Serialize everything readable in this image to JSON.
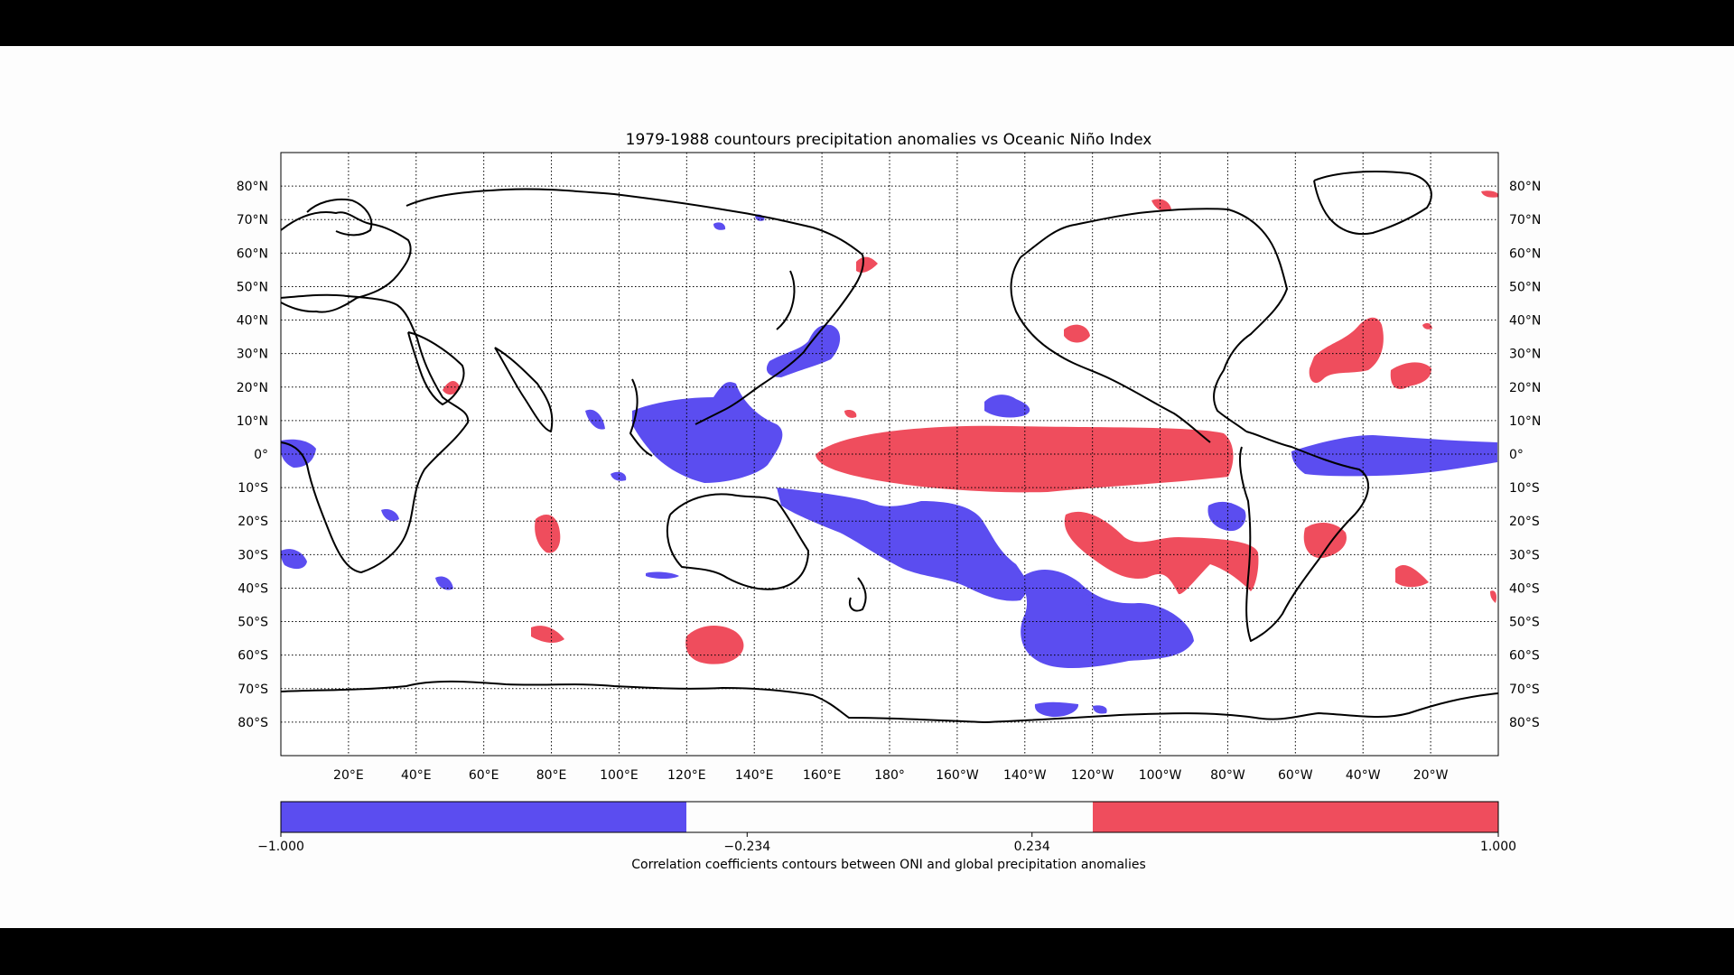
{
  "title": "1979-1988 countours precipitation anomalies vs Oceanic Niño Index",
  "colors": {
    "negative": "#5b4df0",
    "positive": "#ef4d5d",
    "land_outline": "#000000",
    "gridline": "#000000",
    "background": "#fdfdfd",
    "letterbox": "#000000"
  },
  "map": {
    "projection": "plate-carree",
    "central_longitude": 180,
    "lon_range": [
      0,
      360
    ],
    "lat_range": [
      -90,
      90
    ],
    "grid": true,
    "gridline_style": "dotted",
    "lon_tick_labels": [
      "20°E",
      "40°E",
      "60°E",
      "80°E",
      "100°E",
      "120°E",
      "140°E",
      "160°E",
      "180°",
      "160°W",
      "140°W",
      "120°W",
      "100°W",
      "80°W",
      "60°W",
      "40°W",
      "20°W"
    ],
    "lat_tick_labels_left": [
      "80°N",
      "70°N",
      "60°N",
      "50°N",
      "40°N",
      "30°N",
      "20°N",
      "10°N",
      "0°",
      "10°S",
      "20°S",
      "30°S",
      "40°S",
      "50°S",
      "60°S",
      "70°S",
      "80°S"
    ],
    "lat_tick_labels_right": [
      "80°N",
      "70°N",
      "60°N",
      "50°N",
      "40°N",
      "30°N",
      "20°N",
      "10°N",
      "0°",
      "10°S",
      "20°S",
      "30°S",
      "40°S",
      "50°S",
      "60°S",
      "70°S",
      "80°S"
    ]
  },
  "colorbar": {
    "tick_labels": [
      "−1.000",
      "−0.234",
      "0.234",
      "1.000"
    ],
    "tick_values": [
      -1.0,
      -0.234,
      0.234,
      1.0
    ],
    "levels": [
      -1.0,
      -0.234,
      0.234,
      1.0
    ],
    "label": "Correlation coefficients contours between ONI and global precipitation anomalies",
    "orientation": "horizontal",
    "placement": "below"
  },
  "regions": {
    "positive": [
      {
        "name": "equatorial-east-pacific",
        "lon": [
          160,
          262
        ],
        "lat": [
          -12,
          8
        ]
      },
      {
        "name": "south-pacific-arc",
        "lon": [
          228,
          258
        ],
        "lat": [
          -42,
          -15
        ]
      },
      {
        "name": "north-atlantic-subtropics",
        "lon": [
          320,
          345
        ],
        "lat": [
          15,
          38
        ]
      },
      {
        "name": "south-atlantic-brazil",
        "lon": [
          312,
          323
        ],
        "lat": [
          -32,
          -20
        ]
      },
      {
        "name": "southern-ocean-south-of-australia",
        "lon": [
          122,
          140
        ],
        "lat": [
          -63,
          -52
        ]
      },
      {
        "name": "indian-ocean-south",
        "lon": [
          75,
          82
        ],
        "lat": [
          -30,
          -18
        ]
      },
      {
        "name": "north-pacific-east-asia",
        "lon": [
          166,
          172
        ],
        "lat": [
          48,
          55
        ]
      },
      {
        "name": "north-pacific-east",
        "lon": [
          222,
          232
        ],
        "lat": [
          32,
          38
        ]
      },
      {
        "name": "arabian-sea",
        "lon": [
          47,
          52
        ],
        "lat": [
          15,
          20
        ]
      },
      {
        "name": "south-atlantic-southeast",
        "lon": [
          330,
          340
        ],
        "lat": [
          -42,
          -34
        ]
      },
      {
        "name": "southwest-indian-ocean",
        "lon": [
          72,
          82
        ],
        "lat": [
          -57,
          -50
        ]
      },
      {
        "name": "greenland-east",
        "lon": [
          348,
          358
        ],
        "lat": [
          74,
          78
        ]
      }
    ],
    "negative": [
      {
        "name": "maritime-continent",
        "lon": [
          100,
          160
        ],
        "lat": [
          -10,
          20
        ]
      },
      {
        "name": "south-pacific-convergence-zone",
        "lon": [
          150,
          240
        ],
        "lat": [
          -50,
          -10
        ]
      },
      {
        "name": "southern-ocean-pacific",
        "lon": [
          220,
          268
        ],
        "lat": [
          -67,
          -45
        ]
      },
      {
        "name": "equatorial-atlantic-brazil",
        "lon": [
          300,
          360
        ],
        "lat": [
          -7,
          5
        ]
      },
      {
        "name": "west-africa-gulf",
        "lon": [
          0,
          10
        ],
        "lat": [
          -5,
          4
        ]
      },
      {
        "name": "north-pacific-west",
        "lon": [
          145,
          165
        ],
        "lat": [
          22,
          37
        ]
      },
      {
        "name": "hawaii-region",
        "lon": [
          205,
          217
        ],
        "lat": [
          10,
          17
        ]
      },
      {
        "name": "south-atlantic-west",
        "lon": [
          0,
          8
        ],
        "lat": [
          -34,
          -28
        ]
      },
      {
        "name": "galapagos-south",
        "lon": [
          272,
          282
        ],
        "lat": [
          -25,
          -15
        ]
      },
      {
        "name": "antarctic-coast",
        "lon": [
          222,
          246
        ],
        "lat": [
          -78,
          -74
        ]
      }
    ]
  }
}
